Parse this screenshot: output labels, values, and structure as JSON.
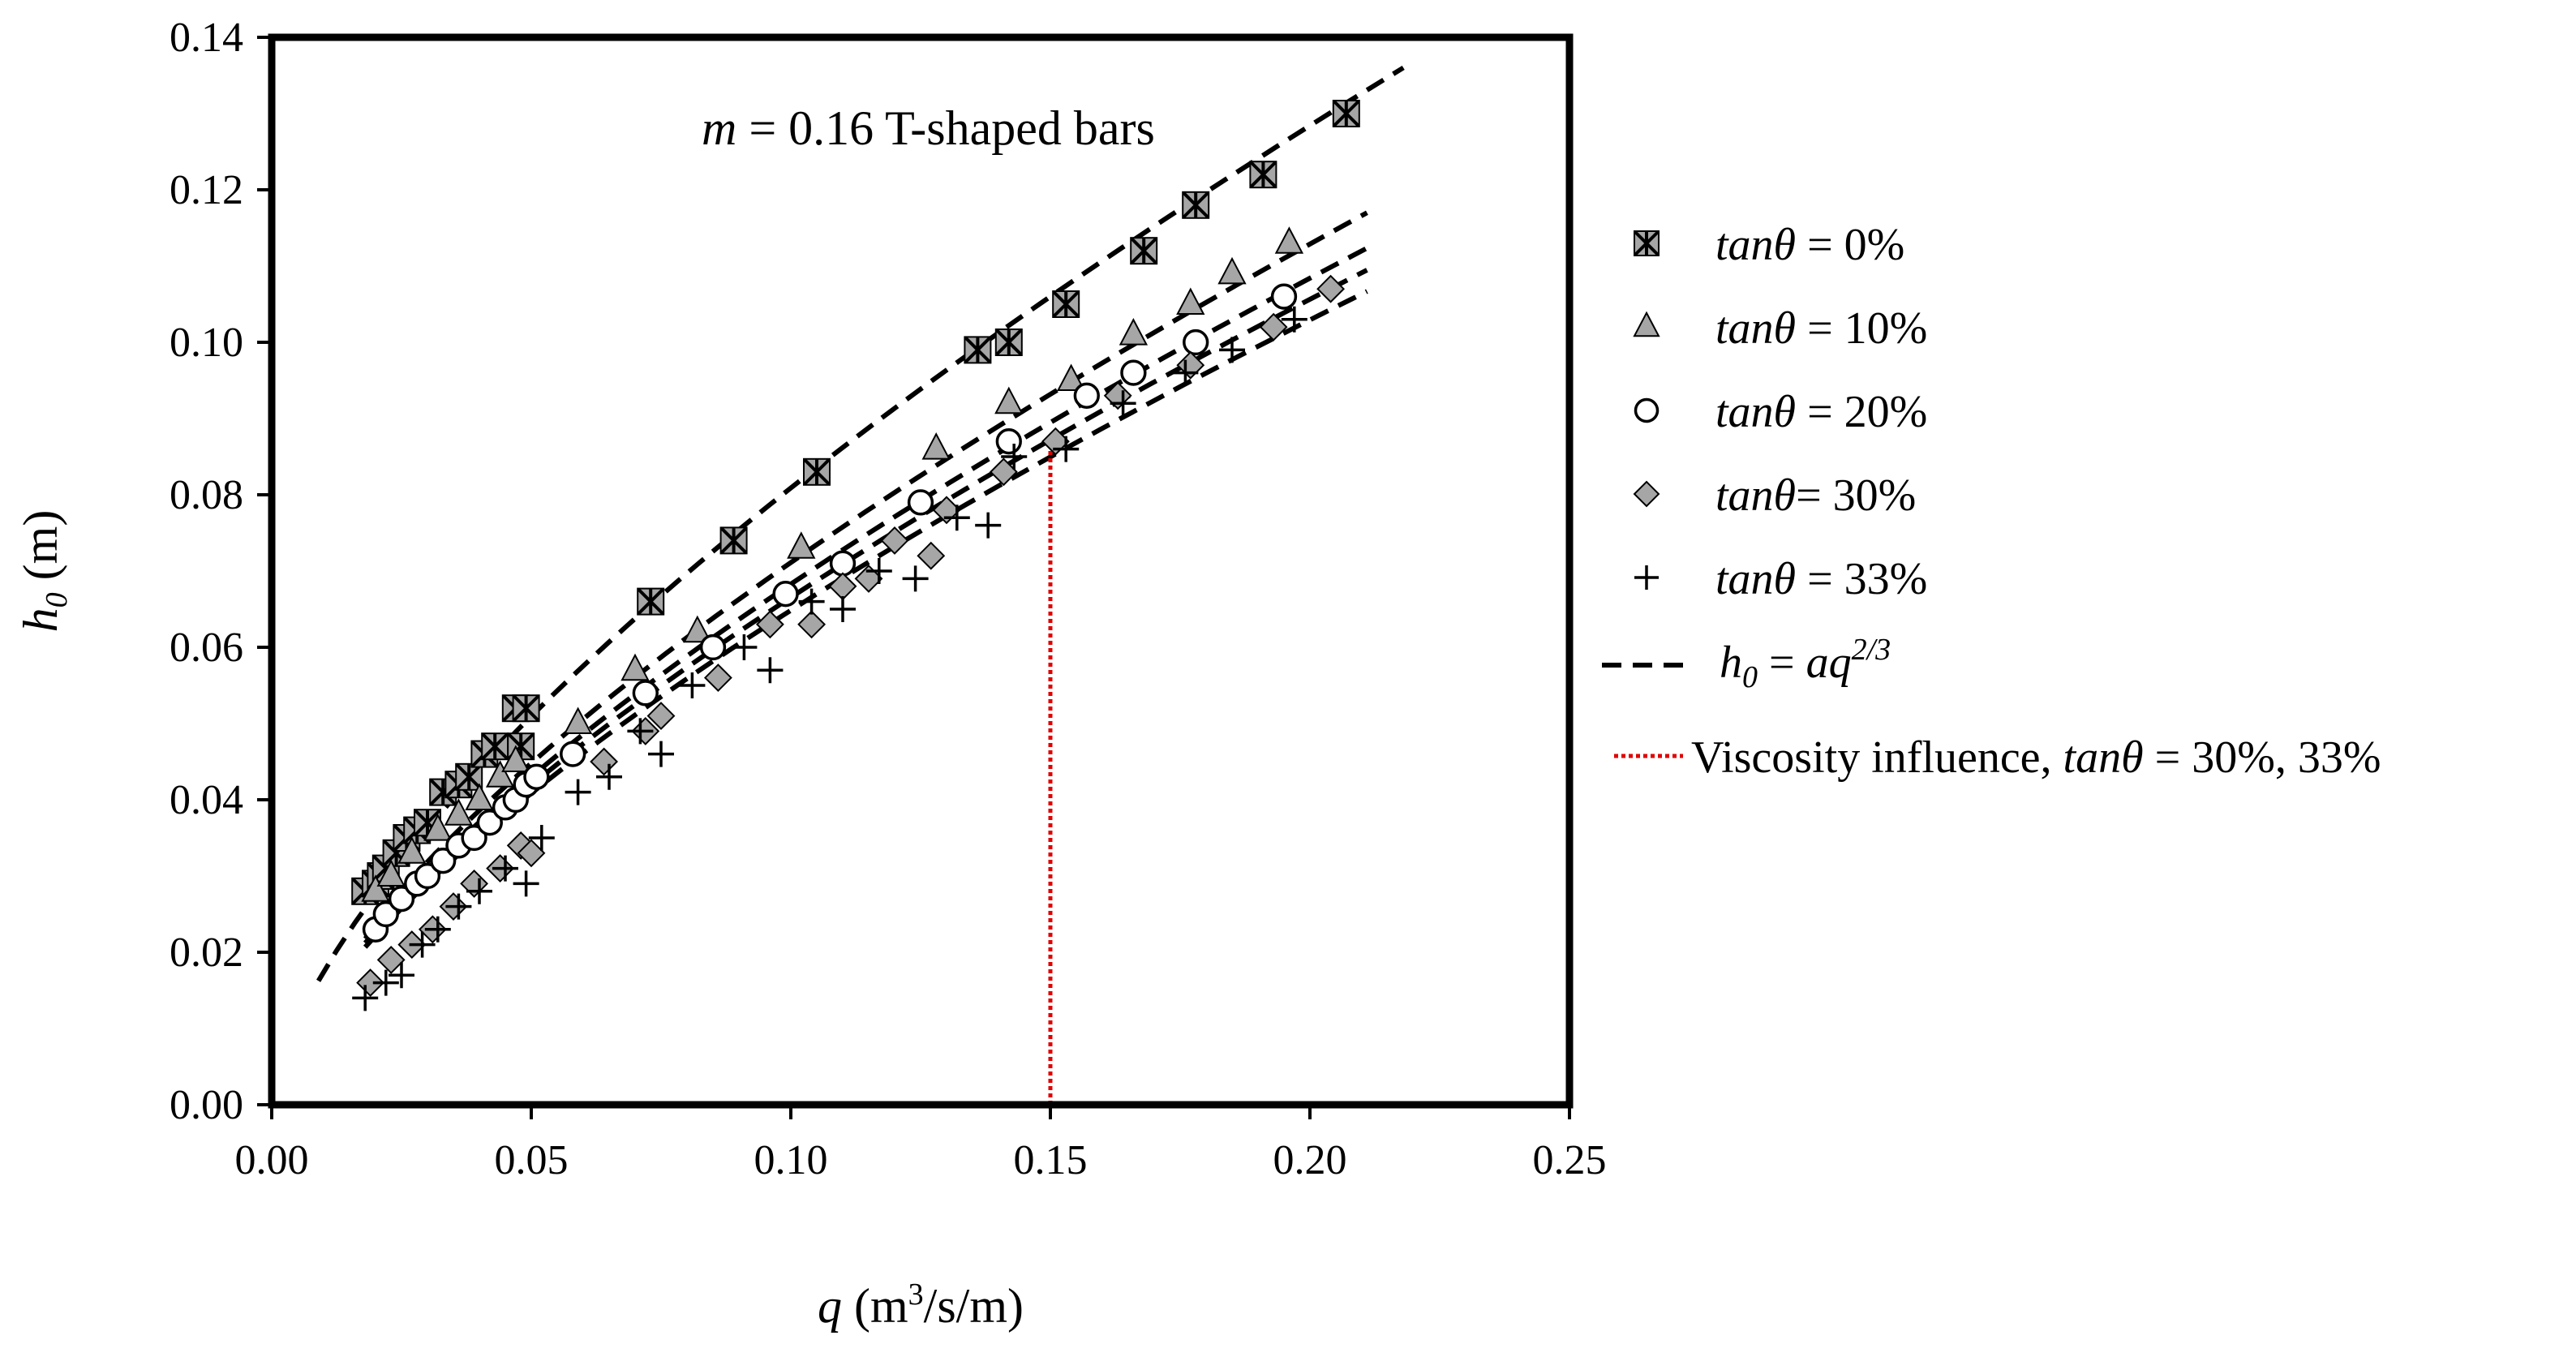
{
  "chart_data": {
    "type": "scatter",
    "annotation": {
      "italic": "m",
      "text": " = 0.16 T-shaped bars"
    },
    "xlabel": {
      "base": "q",
      "unit_pre": " (m",
      "unit_sup": "3",
      "unit_post": "/s/m)"
    },
    "ylabel": {
      "base": "h",
      "sub": "0",
      "unit": " (m)"
    },
    "xlim": [
      0.0,
      0.25
    ],
    "ylim": [
      0.0,
      0.14
    ],
    "xticks": [
      "0.00",
      "0.05",
      "0.10",
      "0.15",
      "0.20",
      "0.25"
    ],
    "yticks": [
      "0.00",
      "0.02",
      "0.04",
      "0.06",
      "0.08",
      "0.10",
      "0.12",
      "0.14"
    ],
    "grid": false,
    "legend_position": "right",
    "series": [
      {
        "name": "tanθ = 0%",
        "legend_italic": "tanθ",
        "legend_rest": " =  0%",
        "marker": "star-square",
        "fill": "#a6a6a6",
        "points": [
          [
            0.018,
            0.028
          ],
          [
            0.02,
            0.029
          ],
          [
            0.021,
            0.03
          ],
          [
            0.022,
            0.031
          ],
          [
            0.024,
            0.033
          ],
          [
            0.026,
            0.035
          ],
          [
            0.028,
            0.036
          ],
          [
            0.03,
            0.037
          ],
          [
            0.033,
            0.041
          ],
          [
            0.036,
            0.042
          ],
          [
            0.038,
            0.043
          ],
          [
            0.041,
            0.046
          ],
          [
            0.043,
            0.047
          ],
          [
            0.047,
            0.052
          ],
          [
            0.048,
            0.047
          ],
          [
            0.049,
            0.052
          ],
          [
            0.073,
            0.066
          ],
          [
            0.089,
            0.074
          ],
          [
            0.105,
            0.083
          ],
          [
            0.136,
            0.099
          ],
          [
            0.142,
            0.1
          ],
          [
            0.153,
            0.105
          ],
          [
            0.168,
            0.112
          ],
          [
            0.178,
            0.118
          ],
          [
            0.191,
            0.122
          ],
          [
            0.207,
            0.13
          ]
        ]
      },
      {
        "name": "tanθ = 10%",
        "legend_italic": "tanθ",
        "legend_rest": " =  10%",
        "marker": "triangle",
        "fill": "#a6a6a6",
        "points": [
          [
            0.02,
            0.028
          ],
          [
            0.023,
            0.03
          ],
          [
            0.027,
            0.033
          ],
          [
            0.032,
            0.036
          ],
          [
            0.036,
            0.038
          ],
          [
            0.04,
            0.04
          ],
          [
            0.044,
            0.043
          ],
          [
            0.047,
            0.045
          ],
          [
            0.059,
            0.05
          ],
          [
            0.07,
            0.057
          ],
          [
            0.082,
            0.062
          ],
          [
            0.102,
            0.073
          ],
          [
            0.128,
            0.086
          ],
          [
            0.142,
            0.092
          ],
          [
            0.154,
            0.095
          ],
          [
            0.166,
            0.101
          ],
          [
            0.177,
            0.105
          ],
          [
            0.185,
            0.109
          ],
          [
            0.196,
            0.113
          ]
        ]
      },
      {
        "name": "tanθ = 20%",
        "legend_italic": "tanθ",
        "legend_rest": " =  20%",
        "marker": "circle",
        "fill": "#ffffff",
        "points": [
          [
            0.02,
            0.023
          ],
          [
            0.022,
            0.025
          ],
          [
            0.025,
            0.027
          ],
          [
            0.028,
            0.029
          ],
          [
            0.03,
            0.03
          ],
          [
            0.033,
            0.032
          ],
          [
            0.036,
            0.034
          ],
          [
            0.039,
            0.035
          ],
          [
            0.042,
            0.037
          ],
          [
            0.045,
            0.039
          ],
          [
            0.047,
            0.04
          ],
          [
            0.049,
            0.042
          ],
          [
            0.051,
            0.043
          ],
          [
            0.058,
            0.046
          ],
          [
            0.072,
            0.054
          ],
          [
            0.085,
            0.06
          ],
          [
            0.099,
            0.067
          ],
          [
            0.11,
            0.071
          ],
          [
            0.125,
            0.079
          ],
          [
            0.142,
            0.087
          ],
          [
            0.157,
            0.093
          ],
          [
            0.166,
            0.096
          ],
          [
            0.178,
            0.1
          ],
          [
            0.195,
            0.106
          ]
        ]
      },
      {
        "name": "tanθ = 30%",
        "legend_italic": "tanθ",
        "legend_rest": "=  30%",
        "marker": "diamond",
        "fill": "#a6a6a6",
        "points": [
          [
            0.019,
            0.016
          ],
          [
            0.023,
            0.019
          ],
          [
            0.027,
            0.021
          ],
          [
            0.031,
            0.023
          ],
          [
            0.035,
            0.026
          ],
          [
            0.039,
            0.029
          ],
          [
            0.044,
            0.031
          ],
          [
            0.048,
            0.034
          ],
          [
            0.05,
            0.033
          ],
          [
            0.064,
            0.045
          ],
          [
            0.072,
            0.049
          ],
          [
            0.075,
            0.051
          ],
          [
            0.086,
            0.056
          ],
          [
            0.096,
            0.063
          ],
          [
            0.104,
            0.063
          ],
          [
            0.11,
            0.068
          ],
          [
            0.115,
            0.069
          ],
          [
            0.12,
            0.074
          ],
          [
            0.127,
            0.072
          ],
          [
            0.13,
            0.078
          ],
          [
            0.141,
            0.083
          ],
          [
            0.151,
            0.087
          ],
          [
            0.163,
            0.093
          ],
          [
            0.177,
            0.097
          ],
          [
            0.193,
            0.102
          ],
          [
            0.204,
            0.107
          ]
        ]
      },
      {
        "name": "tanθ = 33%",
        "legend_italic": "tanθ",
        "legend_rest": " = 33%",
        "marker": "plus",
        "fill": "#000000",
        "points": [
          [
            0.018,
            0.014
          ],
          [
            0.022,
            0.016
          ],
          [
            0.025,
            0.017
          ],
          [
            0.029,
            0.021
          ],
          [
            0.032,
            0.023
          ],
          [
            0.036,
            0.026
          ],
          [
            0.04,
            0.028
          ],
          [
            0.045,
            0.031
          ],
          [
            0.049,
            0.029
          ],
          [
            0.052,
            0.035
          ],
          [
            0.059,
            0.041
          ],
          [
            0.065,
            0.043
          ],
          [
            0.071,
            0.049
          ],
          [
            0.075,
            0.046
          ],
          [
            0.081,
            0.055
          ],
          [
            0.091,
            0.06
          ],
          [
            0.096,
            0.057
          ],
          [
            0.104,
            0.066
          ],
          [
            0.11,
            0.065
          ],
          [
            0.117,
            0.07
          ],
          [
            0.124,
            0.069
          ],
          [
            0.132,
            0.077
          ],
          [
            0.138,
            0.076
          ],
          [
            0.143,
            0.085
          ],
          [
            0.153,
            0.086
          ],
          [
            0.164,
            0.092
          ],
          [
            0.176,
            0.096
          ],
          [
            0.185,
            0.099
          ],
          [
            0.197,
            0.103
          ]
        ]
      }
    ],
    "fit_lines": {
      "legend_math": {
        "lhs": "h",
        "lhs_sub": "0",
        "eq": " = ",
        "rhs": "aq",
        "rhs_sup": "2/3"
      },
      "style": "dashed",
      "exponent": 0.6667,
      "curves": [
        {
          "a": 0.3755,
          "x_range": [
            0.009,
            0.218
          ]
        },
        {
          "a": 0.3301,
          "x_range": [
            0.018,
            0.211
          ]
        },
        {
          "a": 0.317,
          "x_range": [
            0.018,
            0.211
          ]
        },
        {
          "a": 0.3089,
          "x_range": [
            0.018,
            0.211
          ]
        },
        {
          "a": 0.301,
          "x_range": [
            0.018,
            0.211
          ]
        }
      ]
    },
    "viscosity_line": {
      "x": 0.15,
      "y_range": [
        0.0,
        0.086
      ],
      "color": "#e00000",
      "legend_plain": "Viscosity influence, ",
      "legend_italic": "tanθ",
      "legend_rest": " = 30%, 33%"
    }
  }
}
